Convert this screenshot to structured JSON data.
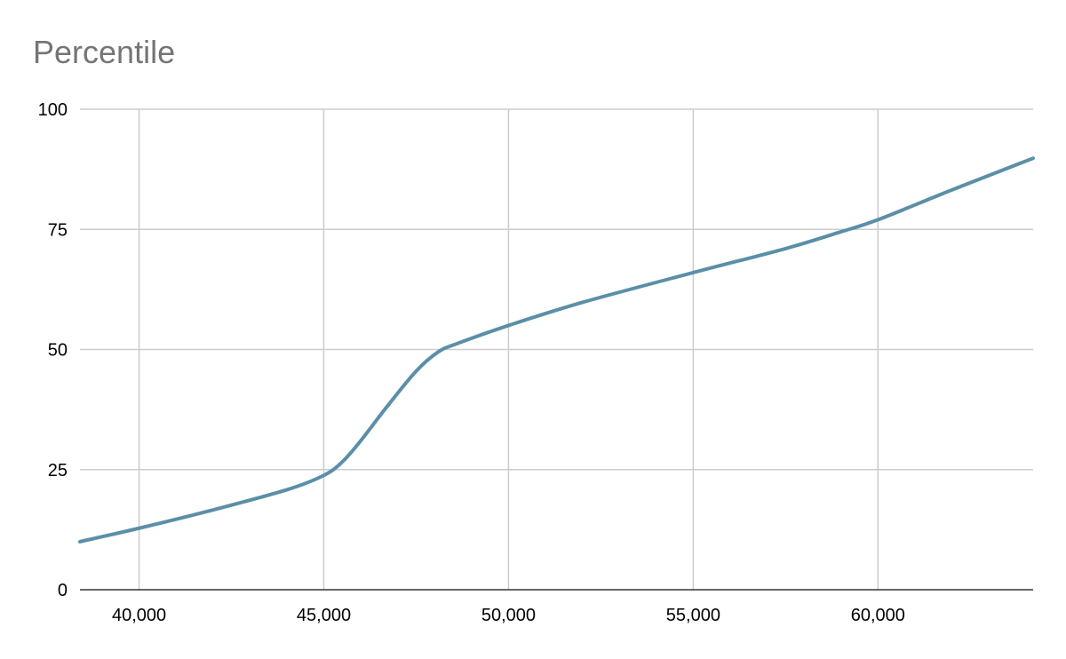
{
  "chart_data": {
    "type": "line",
    "title": "Percentile",
    "xlabel": "",
    "ylabel": "",
    "xlim": [
      38400,
      64200
    ],
    "ylim": [
      0,
      100
    ],
    "x_ticks": [
      40000,
      45000,
      50000,
      55000,
      60000
    ],
    "x_tick_labels": [
      "40,000",
      "45,000",
      "50,000",
      "55,000",
      "60,000"
    ],
    "y_ticks": [
      0,
      25,
      50,
      75,
      100
    ],
    "y_tick_labels": [
      "0",
      "25",
      "50",
      "75",
      "100"
    ],
    "grid": true,
    "legend": "none",
    "series": [
      {
        "color": "#5b8fa8",
        "points": [
          [
            38400,
            10
          ],
          [
            40000,
            12.8
          ],
          [
            42000,
            16.6
          ],
          [
            44000,
            20.8
          ],
          [
            45000,
            23.8
          ],
          [
            45500,
            26.6
          ],
          [
            46000,
            31
          ],
          [
            46700,
            38
          ],
          [
            47500,
            45.5
          ],
          [
            48100,
            49.5
          ],
          [
            48600,
            51.2
          ],
          [
            50000,
            55
          ],
          [
            52000,
            59.8
          ],
          [
            55000,
            66
          ],
          [
            57500,
            71
          ],
          [
            59000,
            74.5
          ],
          [
            60000,
            77
          ],
          [
            62000,
            83.2
          ],
          [
            64200,
            89.8
          ]
        ]
      }
    ]
  }
}
